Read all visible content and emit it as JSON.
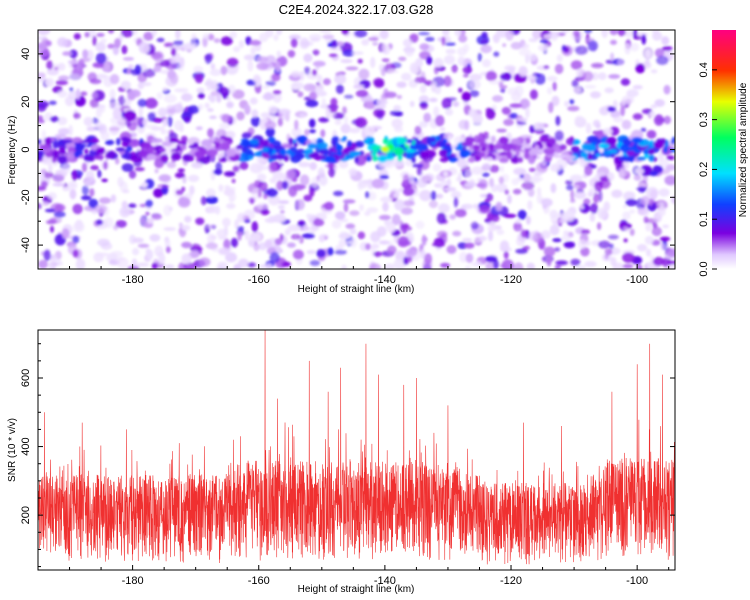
{
  "title": "C2E4.2024.322.17.03.G28",
  "chart_data": [
    {
      "type": "heatmap",
      "title": "C2E4.2024.322.17.03.G28",
      "xlabel": "Height of straight line (km)",
      "ylabel": "Frequency (Hz)",
      "xlim": [
        -195,
        -94
      ],
      "ylim": [
        -50,
        50
      ],
      "x_ticks": [
        "-180",
        "-160",
        "-140",
        "-120",
        "-100"
      ],
      "y_ticks": [
        "40",
        "20",
        "0",
        "-20",
        "-40"
      ],
      "colorbar": {
        "label": "Normalized spectral amplitude",
        "range": [
          0.0,
          0.48
        ],
        "ticks": [
          "0.0",
          "0.1",
          "0.2",
          "0.3",
          "0.4"
        ],
        "colormap": "rainbow-to-white (white, purple, blue, cyan, green, yellow, red, magenta)"
      },
      "features": {
        "signal_band_frequency_hz": 0,
        "peak_amplitude": 0.33,
        "peak_location_km": -140
      }
    },
    {
      "type": "line",
      "xlabel": "Height of straight line (km)",
      "ylabel": "SNR (10 * v/v)",
      "xlim": [
        -195,
        -94
      ],
      "ylim": [
        40,
        740
      ],
      "x_ticks": [
        "-180",
        "-160",
        "-140",
        "-120",
        "-100"
      ],
      "y_ticks": [
        "200",
        "400",
        "600"
      ],
      "series": [
        {
          "color": "#f03030",
          "x_range": [
            -195,
            -94
          ],
          "typical_range": [
            60,
            320
          ],
          "spikes": [
            {
              "x": -194,
              "y": 500
            },
            {
              "x": -188,
              "y": 470
            },
            {
              "x": -181,
              "y": 450
            },
            {
              "x": -164,
              "y": 420
            },
            {
              "x": -159,
              "y": 740
            },
            {
              "x": -157,
              "y": 540
            },
            {
              "x": -152,
              "y": 650
            },
            {
              "x": -149,
              "y": 560
            },
            {
              "x": -147,
              "y": 630
            },
            {
              "x": -143,
              "y": 700
            },
            {
              "x": -141,
              "y": 610
            },
            {
              "x": -137,
              "y": 580
            },
            {
              "x": -135,
              "y": 600
            },
            {
              "x": -130,
              "y": 520
            },
            {
              "x": -118,
              "y": 470
            },
            {
              "x": -112,
              "y": 460
            },
            {
              "x": -104,
              "y": 560
            },
            {
              "x": -100,
              "y": 640
            },
            {
              "x": -98,
              "y": 700
            },
            {
              "x": -96,
              "y": 610
            }
          ]
        }
      ]
    }
  ]
}
